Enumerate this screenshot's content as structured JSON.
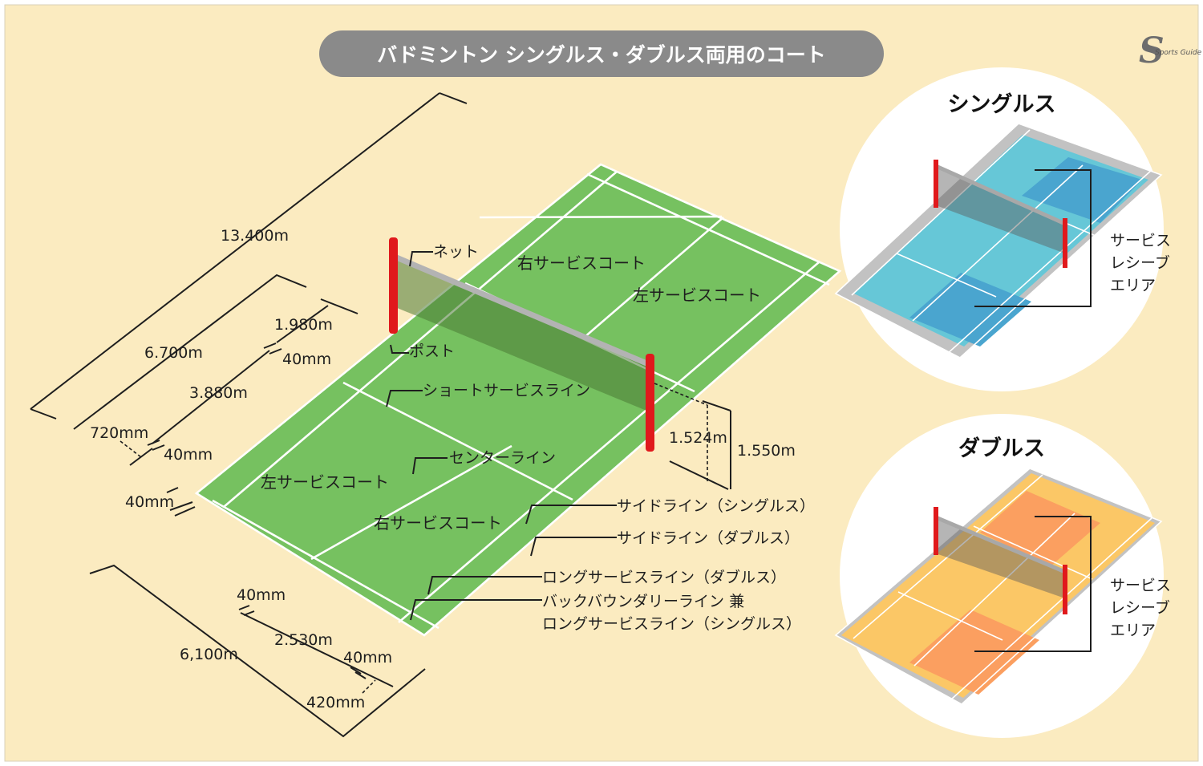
{
  "title": "バドミントン シングルス・ダブルス両用のコート",
  "logo": "Sports Guide TOWNS",
  "colors": {
    "background": "#fbebc0",
    "court_green": "#76c160",
    "court_line": "#ffffff",
    "post_red": "#e0191c",
    "net_gray": "#b3b3b3",
    "title_pill": "#8a8a8a",
    "singles_light": "#66c7d7",
    "singles_dark": "#4aa5cf",
    "doubles_light": "#fbc766",
    "doubles_dark": "#fb9f60",
    "inset_circle": "#ffffff",
    "inset_border": "#c2c2c2"
  },
  "dimensions": {
    "length_total": "13.400m",
    "half_length": "6.700m",
    "back_to_long": "1.980m",
    "line_width_1": "40mm",
    "middle": "3.880m",
    "net_zone": "720mm",
    "line_width_2": "40mm",
    "line_width_3": "40mm",
    "width_total": "6,100m",
    "width_line_1": "40mm",
    "side_half": "2.530m",
    "width_line_2": "40mm",
    "side_alley": "420mm",
    "post_height": "1.550m",
    "net_center_height": "1.524m"
  },
  "labels": {
    "net": "ネット",
    "post": "ポスト",
    "short_service_line": "ショートサービスライン",
    "center_line": "センターライン",
    "right_court_far": "右サービスコート",
    "left_court_far": "左サービスコート",
    "left_court_near": "左サービスコート",
    "right_court_near": "右サービスコート",
    "side_singles": "サイドライン（シングルス）",
    "side_doubles": "サイドライン（ダブルス）",
    "long_service_doubles": "ロングサービスライン（ダブルス）",
    "back_boundary_1": "バックバウンダリーライン 兼",
    "back_boundary_2": "ロングサービスライン（シングルス）"
  },
  "singles_inset": {
    "title": "シングルス",
    "area_line_1": "サービス",
    "area_line_2": "レシーブ",
    "area_line_3": "エリア"
  },
  "doubles_inset": {
    "title": "ダブルス",
    "area_line_1": "サービス",
    "area_line_2": "レシーブ",
    "area_line_3": "エリア"
  }
}
